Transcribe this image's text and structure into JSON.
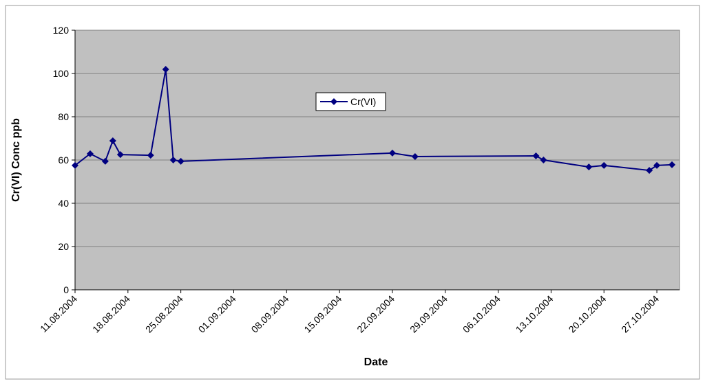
{
  "chart_data": {
    "type": "line",
    "x_label": "Date",
    "y_label": "Cr(VI) Conc ppb",
    "x": [
      "2004-08-11",
      "2004-08-13",
      "2004-08-15",
      "2004-08-16",
      "2004-08-17",
      "2004-08-21",
      "2004-08-23",
      "2004-08-24",
      "2004-08-25",
      "2004-09-22",
      "2004-09-25",
      "2004-10-11",
      "2004-10-12",
      "2004-10-18",
      "2004-10-20",
      "2004-10-26",
      "2004-10-27",
      "2004-10-29"
    ],
    "series": [
      {
        "name": "Cr(VI)",
        "color": "#000080",
        "values": [
          57.5,
          62.9,
          59.4,
          68.9,
          62.5,
          62.2,
          101.9,
          60,
          59.4,
          63.2,
          61.6,
          61.9,
          60,
          56.8,
          57.5,
          55.2,
          57.5,
          57.8
        ]
      }
    ],
    "xlim": [
      "2004-08-11",
      "2004-10-30"
    ],
    "xticks": [
      {
        "value": "2004-08-11",
        "label": "11.08.2004"
      },
      {
        "value": "2004-08-18",
        "label": "18.08.2004"
      },
      {
        "value": "2004-08-25",
        "label": "25.08.2004"
      },
      {
        "value": "2004-09-01",
        "label": "01.09.2004"
      },
      {
        "value": "2004-09-08",
        "label": "08.09.2004"
      },
      {
        "value": "2004-09-15",
        "label": "15.09.2004"
      },
      {
        "value": "2004-09-22",
        "label": "22.09.2004"
      },
      {
        "value": "2004-09-29",
        "label": "29.09.2004"
      },
      {
        "value": "2004-10-06",
        "label": "06.10.2004"
      },
      {
        "value": "2004-10-13",
        "label": "13.10.2004"
      },
      {
        "value": "2004-10-20",
        "label": "20.10.2004"
      },
      {
        "value": "2004-10-27",
        "label": "27.10.2004"
      }
    ],
    "ylim": [
      0,
      120
    ],
    "yticks": [
      0,
      20,
      40,
      60,
      80,
      100,
      120
    ],
    "grid": true,
    "plot_background": "#c0c0c0"
  }
}
